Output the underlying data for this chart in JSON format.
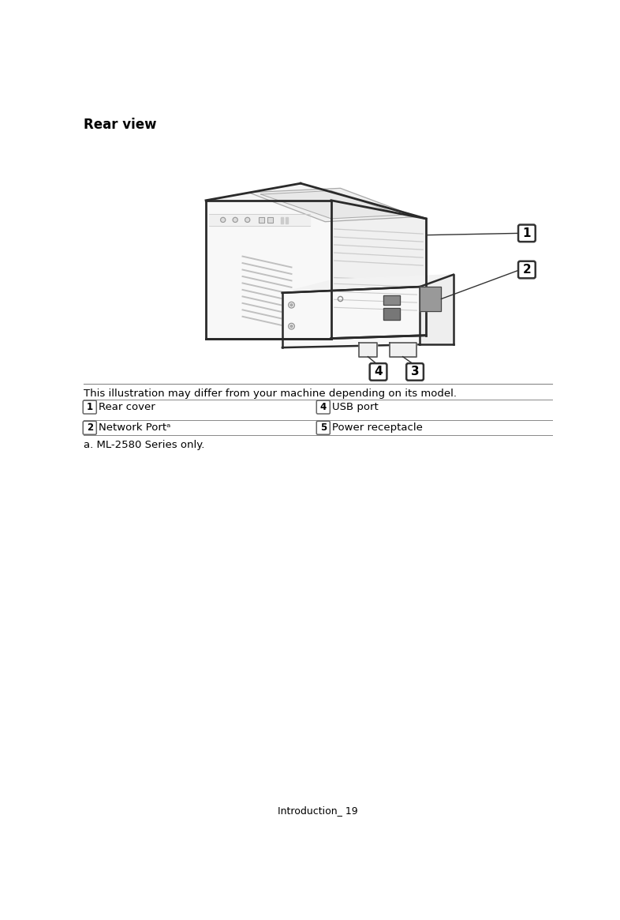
{
  "title": "Rear view",
  "title_fontsize": 12,
  "disclaimer": "This illustration may differ from your machine depending on its model.",
  "disclaimer_fontsize": 9.5,
  "footnote": "a. ML-2580 Series only.",
  "footnote_fontsize": 9.5,
  "page_label": "Introduction_ 19",
  "page_label_fontsize": 9,
  "table_rows": [
    {
      "left_num": "1",
      "left_text": "Rear cover",
      "right_num": "4",
      "right_text": "USB port"
    },
    {
      "left_num": "2",
      "left_text": "Network Portᵃ",
      "right_num": "5",
      "right_text": "Power receptacle"
    }
  ],
  "bg_color": "#ffffff",
  "text_color": "#000000",
  "outline_color": "#2a2a2a",
  "light_gray": "#e8e8e8",
  "mid_gray": "#c8c8c8",
  "vent_gray": "#bbbbbb"
}
